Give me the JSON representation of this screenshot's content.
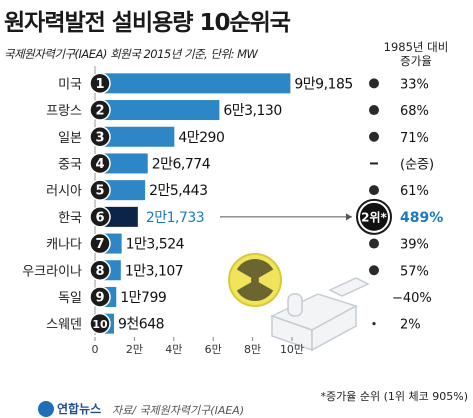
{
  "title": "원자력발전 설비용량 10순위국",
  "subtitle": "국제원자력기구(IAEA) 회원국 2015년 기준, 단위: MW",
  "rate_header": {
    "line1": "1985년 대비",
    "line2": "증가율"
  },
  "chart_data": {
    "type": "bar",
    "orientation": "horizontal",
    "title": "원자력발전 설비용량 10순위국",
    "categories": [
      "미국",
      "프랑스",
      "일본",
      "중국",
      "러시아",
      "한국",
      "캐나다",
      "우크라이나",
      "독일",
      "스웨덴"
    ],
    "values": [
      99185,
      63130,
      40290,
      26774,
      25443,
      21733,
      13524,
      13107,
      10799,
      9648
    ],
    "ranks": [
      "1",
      "2",
      "3",
      "4",
      "5",
      "6",
      "7",
      "8",
      "9",
      "10"
    ],
    "value_labels": [
      "9만9,185",
      "6만3,130",
      "4만290",
      "2만6,774",
      "2만5,443",
      "2만1,733",
      "1만3,524",
      "1만3,107",
      "1만799",
      "9천648"
    ],
    "growth_rates": [
      "33%",
      "68%",
      "71%",
      "(순증)",
      "61%",
      "489%",
      "39%",
      "57%",
      "−40%",
      "2%"
    ],
    "growth_rank_badge": "2위*",
    "highlight_category": "한국",
    "x_ticks": [
      0,
      20000,
      40000,
      60000,
      80000,
      100000
    ],
    "x_tick_labels": [
      "0",
      "2만",
      "4만",
      "6만",
      "8만",
      "10만"
    ],
    "xlim": [
      0,
      100000
    ],
    "colors": {
      "bar": "#2d86c6",
      "bar_highlight": "#0c2447",
      "rank_circle": "#1b1b1b",
      "highlight_text": "#1a7bc0"
    }
  },
  "footnote": "*증가율 순위 (1위 체코 905%)",
  "source": "자료/ 국제원자력기구(IAEA)",
  "logo": "연합뉴스"
}
